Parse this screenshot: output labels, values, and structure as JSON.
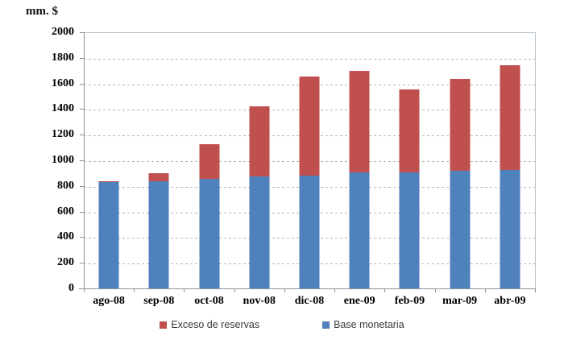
{
  "chart_data": {
    "type": "bar",
    "stacked": true,
    "title": "",
    "ylabel": "mm. $",
    "xlabel": "",
    "ylim": [
      0,
      2000
    ],
    "ytick_step": 200,
    "grid": "horizontal-dashed",
    "legend_position": "bottom",
    "categories": [
      "ago-08",
      "sep-08",
      "oct-08",
      "nov-08",
      "dic-08",
      "ene-09",
      "feb-09",
      "mar-09",
      "abr-09"
    ],
    "series": [
      {
        "name": "Base monetaria",
        "color": "#4f81bd",
        "values": [
          840,
          845,
          860,
          880,
          890,
          910,
          915,
          925,
          930
        ]
      },
      {
        "name": "Exceso de reservas",
        "color": "#c0504d",
        "values": [
          5,
          60,
          270,
          550,
          770,
          795,
          645,
          715,
          820
        ]
      }
    ]
  },
  "legend": {
    "items": [
      {
        "label": "Exceso de reservas",
        "color": "#c0504d"
      },
      {
        "label": "Base monetaria",
        "color": "#4f81bd"
      }
    ]
  }
}
